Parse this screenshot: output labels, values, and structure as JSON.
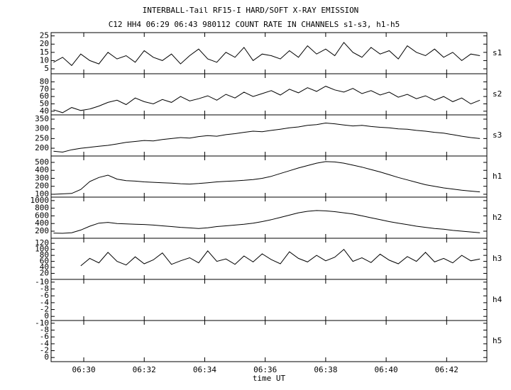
{
  "chart_data": [
    {
      "type": "line",
      "title": "INTERBALL-Tail RF15-I HARD/SOFT X-RAY EMISSION",
      "subtitle": "C12 HH4 06:29 06:43 980112  COUNT RATE IN CHANNELS s1-s3, h1-h5",
      "label": "s1",
      "x": [
        29.0,
        29.3,
        29.6,
        29.9,
        30.2,
        30.5,
        30.8,
        31.1,
        31.4,
        31.7,
        32.0,
        32.3,
        32.6,
        32.9,
        33.2,
        33.5,
        33.8,
        34.1,
        34.4,
        34.7,
        35.0,
        35.3,
        35.6,
        35.9,
        36.2,
        36.5,
        36.8,
        37.1,
        37.4,
        37.7,
        38.0,
        38.3,
        38.6,
        38.9,
        39.2,
        39.5,
        39.8,
        40.1,
        40.4,
        40.7,
        41.0,
        41.3,
        41.6,
        41.9,
        42.2,
        42.5,
        42.8,
        43.1
      ],
      "values": [
        9,
        12,
        7,
        14,
        10,
        8,
        15,
        11,
        13,
        9,
        16,
        12,
        10,
        14,
        8,
        13,
        17,
        11,
        9,
        15,
        12,
        18,
        10,
        14,
        13,
        11,
        16,
        12,
        19,
        14,
        17,
        13,
        21,
        15,
        12,
        18,
        14,
        16,
        11,
        19,
        15,
        13,
        17,
        12,
        15,
        10,
        14,
        13
      ],
      "ylim": [
        2,
        27
      ],
      "yticks": [
        5,
        10,
        15,
        20,
        25
      ],
      "color": "#000000"
    },
    {
      "type": "line",
      "label": "s2",
      "x": [
        29.0,
        29.3,
        29.6,
        29.9,
        30.2,
        30.5,
        30.8,
        31.1,
        31.4,
        31.7,
        32.0,
        32.3,
        32.6,
        32.9,
        33.2,
        33.5,
        33.8,
        34.1,
        34.4,
        34.7,
        35.0,
        35.3,
        35.6,
        35.9,
        36.2,
        36.5,
        36.8,
        37.1,
        37.4,
        37.7,
        38.0,
        38.3,
        38.6,
        38.9,
        39.2,
        39.5,
        39.8,
        40.1,
        40.4,
        40.7,
        41.0,
        41.3,
        41.6,
        41.9,
        42.2,
        42.5,
        42.8,
        43.1
      ],
      "values": [
        42,
        38,
        45,
        41,
        43,
        47,
        52,
        55,
        49,
        58,
        53,
        50,
        56,
        52,
        60,
        54,
        57,
        61,
        55,
        63,
        58,
        66,
        60,
        64,
        68,
        62,
        70,
        65,
        72,
        67,
        74,
        69,
        66,
        71,
        64,
        68,
        62,
        66,
        59,
        63,
        57,
        61,
        55,
        60,
        53,
        58,
        50,
        55
      ],
      "ylim": [
        35,
        91
      ],
      "yticks": [
        40,
        50,
        60,
        70,
        80
      ],
      "color": "#000000"
    },
    {
      "type": "line",
      "label": "s3",
      "x": [
        29.0,
        29.3,
        29.6,
        29.9,
        30.2,
        30.5,
        30.8,
        31.1,
        31.4,
        31.7,
        32.0,
        32.3,
        32.6,
        32.9,
        33.2,
        33.5,
        33.8,
        34.1,
        34.4,
        34.7,
        35.0,
        35.3,
        35.6,
        35.9,
        36.2,
        36.5,
        36.8,
        37.1,
        37.4,
        37.7,
        38.0,
        38.3,
        38.6,
        38.9,
        39.2,
        39.5,
        39.8,
        40.1,
        40.4,
        40.7,
        41.0,
        41.3,
        41.6,
        41.9,
        42.2,
        42.5,
        42.8,
        43.1
      ],
      "values": [
        185,
        180,
        192,
        200,
        205,
        210,
        215,
        222,
        230,
        235,
        240,
        238,
        245,
        250,
        255,
        252,
        260,
        265,
        262,
        270,
        275,
        282,
        288,
        285,
        292,
        298,
        305,
        310,
        318,
        322,
        330,
        326,
        320,
        315,
        318,
        312,
        308,
        305,
        300,
        298,
        292,
        288,
        282,
        278,
        270,
        262,
        255,
        250
      ],
      "ylim": [
        160,
        372
      ],
      "yticks": [
        200,
        250,
        300,
        350
      ],
      "color": "#000000"
    },
    {
      "type": "line",
      "label": "h1",
      "x": [
        29.0,
        29.3,
        29.6,
        29.9,
        30.2,
        30.5,
        30.8,
        31.1,
        31.4,
        31.7,
        32.0,
        32.3,
        32.6,
        32.9,
        33.2,
        33.5,
        33.8,
        34.1,
        34.4,
        34.7,
        35.0,
        35.3,
        35.6,
        35.9,
        36.2,
        36.5,
        36.8,
        37.1,
        37.4,
        37.7,
        38.0,
        38.3,
        38.6,
        38.9,
        39.2,
        39.5,
        39.8,
        40.1,
        40.4,
        40.7,
        41.0,
        41.3,
        41.6,
        41.9,
        42.2,
        42.5,
        42.8,
        43.1
      ],
      "values": [
        100,
        105,
        110,
        160,
        260,
        310,
        340,
        290,
        270,
        265,
        255,
        250,
        245,
        240,
        232,
        228,
        235,
        245,
        255,
        262,
        268,
        275,
        285,
        300,
        325,
        360,
        395,
        430,
        460,
        490,
        510,
        505,
        490,
        465,
        440,
        410,
        380,
        345,
        310,
        280,
        250,
        220,
        200,
        180,
        165,
        150,
        140,
        130
      ],
      "ylim": [
        64,
        580
      ],
      "yticks": [
        100,
        200,
        300,
        400,
        500
      ],
      "color": "#000000"
    },
    {
      "type": "line",
      "label": "h2",
      "x": [
        29.0,
        29.3,
        29.6,
        29.9,
        30.2,
        30.5,
        30.8,
        31.1,
        31.4,
        31.7,
        32.0,
        32.3,
        32.6,
        32.9,
        33.2,
        33.5,
        33.8,
        34.1,
        34.4,
        34.7,
        35.0,
        35.3,
        35.6,
        35.9,
        36.2,
        36.5,
        36.8,
        37.1,
        37.4,
        37.7,
        38.0,
        38.3,
        38.6,
        38.9,
        39.2,
        39.5,
        39.8,
        40.1,
        40.4,
        40.7,
        41.0,
        41.3,
        41.6,
        41.9,
        42.2,
        42.5,
        42.8,
        43.1
      ],
      "values": [
        150,
        145,
        160,
        230,
        330,
        410,
        430,
        400,
        390,
        380,
        375,
        360,
        340,
        320,
        300,
        285,
        270,
        290,
        320,
        340,
        360,
        380,
        410,
        450,
        500,
        560,
        620,
        680,
        720,
        740,
        730,
        710,
        680,
        650,
        600,
        550,
        500,
        450,
        410,
        370,
        330,
        300,
        270,
        250,
        220,
        200,
        180,
        160
      ],
      "ylim": [
        15,
        1090
      ],
      "yticks": [
        200,
        400,
        600,
        800,
        1000
      ],
      "color": "#000000"
    },
    {
      "type": "line",
      "label": "h3",
      "x": [
        29.0,
        29.3,
        29.6,
        29.9,
        30.2,
        30.5,
        30.8,
        31.1,
        31.4,
        31.7,
        32.0,
        32.3,
        32.6,
        32.9,
        33.2,
        33.5,
        33.8,
        34.1,
        34.4,
        34.7,
        35.0,
        35.3,
        35.6,
        35.9,
        36.2,
        36.5,
        36.8,
        37.1,
        37.4,
        37.7,
        38.0,
        38.3,
        38.6,
        38.9,
        39.2,
        39.5,
        39.8,
        40.1,
        40.4,
        40.7,
        41.0,
        41.3,
        41.6,
        41.9,
        42.2,
        42.5,
        42.8,
        43.1
      ],
      "values": [
        null,
        null,
        null,
        45,
        70,
        55,
        90,
        60,
        48,
        75,
        52,
        65,
        88,
        50,
        62,
        72,
        55,
        95,
        60,
        68,
        50,
        78,
        58,
        85,
        66,
        52,
        92,
        70,
        58,
        80,
        62,
        74,
        100,
        60,
        72,
        56,
        84,
        64,
        52,
        76,
        60,
        90,
        58,
        70,
        55,
        80,
        62,
        68
      ],
      "ylim": [
        0,
        137
      ],
      "yticks": [
        20,
        40,
        60,
        80,
        100,
        120
      ],
      "color": "#000000"
    },
    {
      "type": "line",
      "label": "h4",
      "ylim": [
        1.2,
        -10.8
      ],
      "yticks": [
        -10,
        -8,
        -6,
        -4,
        -2,
        0
      ]
    },
    {
      "type": "line",
      "label": "h5",
      "ylim": [
        1.2,
        -10.8
      ],
      "yticks": [
        -10,
        -8,
        -6,
        -4,
        -2,
        0
      ],
      "xlabel": "time UT",
      "xlim": [
        28.92,
        43.33
      ],
      "xticks": [
        {
          "value": 30,
          "label": "06:30"
        },
        {
          "value": 32,
          "label": "06:32"
        },
        {
          "value": 34,
          "label": "06:34"
        },
        {
          "value": 36,
          "label": "06:36"
        },
        {
          "value": 38,
          "label": "06:38"
        },
        {
          "value": 40,
          "label": "06:40"
        },
        {
          "value": 42,
          "label": "06:42"
        }
      ]
    }
  ]
}
